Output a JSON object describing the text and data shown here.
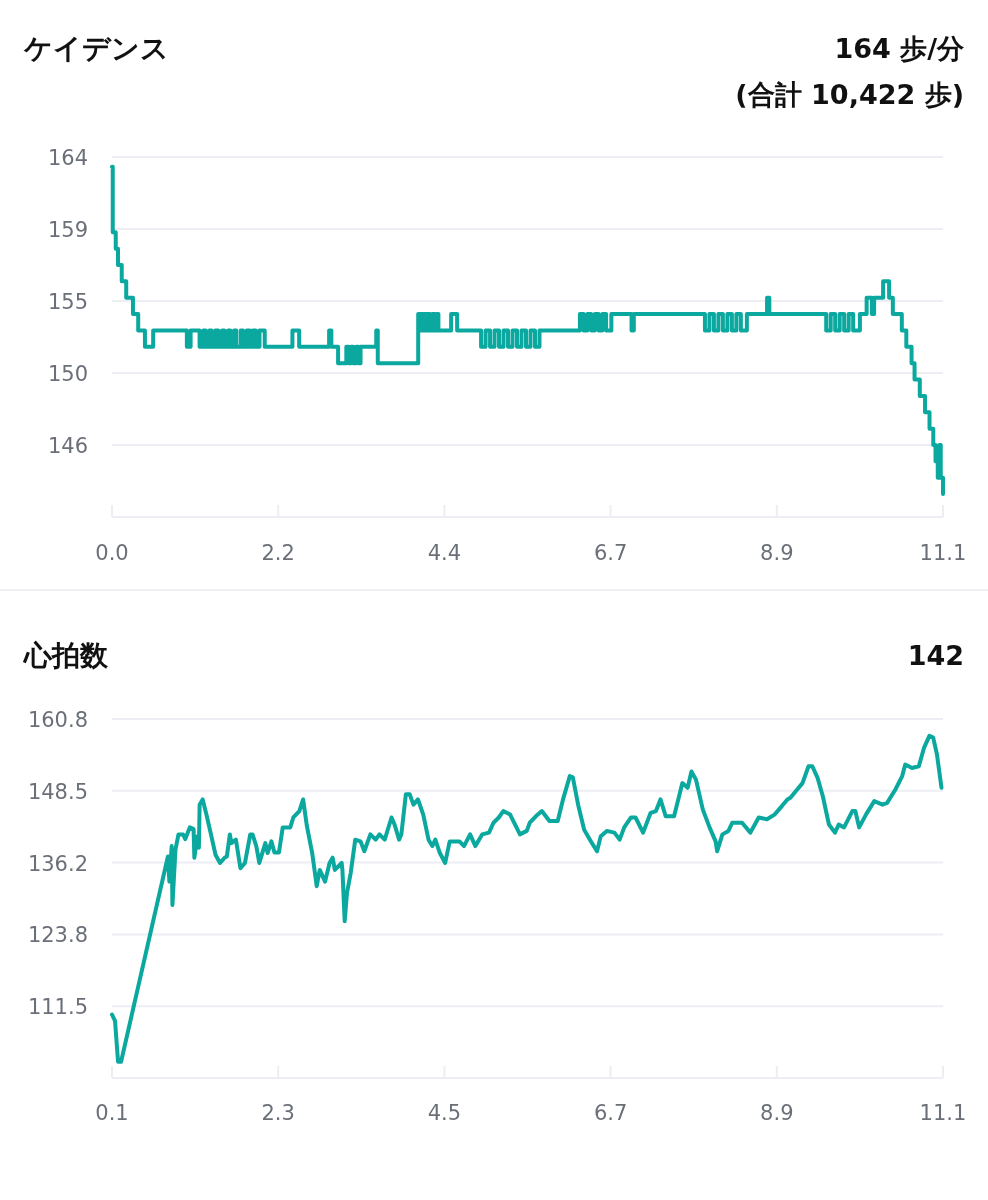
{
  "chart_data": [
    {
      "type": "step",
      "title": "ケイデンス",
      "annotations": [
        "164 歩/分",
        "(合計 10,422 歩)"
      ],
      "color": "#0aa89e",
      "grid": "y",
      "xlim": [
        0,
        11.1
      ],
      "ylim": [
        141.6,
        163.6
      ],
      "xticks": [
        {
          "value": 0,
          "label": "0.0"
        },
        {
          "value": 2.22,
          "label": "2.2"
        },
        {
          "value": 4.44,
          "label": "4.4"
        },
        {
          "value": 6.66,
          "label": "6.7"
        },
        {
          "value": 8.88,
          "label": "8.9"
        },
        {
          "value": 11.1,
          "label": "11.1"
        }
      ],
      "yticks": [
        {
          "value": 146.0,
          "label": "146"
        },
        {
          "value": 150.4,
          "label": "150"
        },
        {
          "value": 154.8,
          "label": "155"
        },
        {
          "value": 159.2,
          "label": "159"
        },
        {
          "value": 163.6,
          "label": "164"
        }
      ],
      "x": [
        0,
        0.01,
        0.05,
        0.08,
        0.13,
        0.19,
        0.28,
        0.35,
        0.44,
        0.55,
        1.0,
        1.05,
        1.17,
        1.22,
        1.25,
        1.3,
        1.33,
        1.38,
        1.42,
        1.47,
        1.5,
        1.55,
        1.58,
        1.63,
        1.66,
        1.72,
        1.75,
        1.8,
        1.84,
        1.88,
        1.92,
        1.97,
        2.04,
        2.41,
        2.5,
        2.9,
        2.93,
        3.02,
        3.13,
        3.16,
        3.19,
        3.22,
        3.26,
        3.29,
        3.32,
        3.53,
        3.55,
        4.09,
        4.13,
        4.15,
        4.19,
        4.21,
        4.25,
        4.28,
        4.32,
        4.34,
        4.36,
        4.53,
        4.61,
        4.93,
        4.99,
        5.05,
        5.11,
        5.17,
        5.23,
        5.29,
        5.35,
        5.41,
        5.47,
        5.53,
        5.59,
        5.65,
        5.71,
        5.78,
        6.25,
        6.3,
        6.35,
        6.4,
        6.45,
        6.5,
        6.55,
        6.6,
        6.67,
        6.94,
        6.97,
        7.92,
        7.98,
        8.04,
        8.1,
        8.16,
        8.22,
        8.28,
        8.34,
        8.4,
        8.48,
        8.75,
        8.78,
        9.54,
        9.6,
        9.66,
        9.72,
        9.78,
        9.84,
        9.9,
        9.99,
        10.08,
        10.15,
        10.18,
        10.3,
        10.38,
        10.43,
        10.55,
        10.61,
        10.68,
        10.72,
        10.79,
        10.86,
        10.92,
        10.97,
        11.0,
        11.03,
        11.05,
        11.07,
        11.1
      ],
      "values": [
        163,
        159,
        158,
        157,
        156,
        155,
        154,
        153,
        152,
        153,
        152,
        153,
        152,
        153,
        152,
        153,
        152,
        153,
        152,
        153,
        152,
        153,
        152,
        153,
        152,
        153,
        152,
        153,
        152,
        153,
        152,
        153,
        152,
        153,
        152,
        153,
        152,
        151,
        152,
        151,
        152,
        151,
        152,
        151,
        152,
        153,
        151,
        154,
        153,
        154,
        153,
        154,
        153,
        154,
        153,
        154,
        153,
        154,
        153,
        152,
        153,
        152,
        153,
        152,
        153,
        152,
        153,
        152,
        153,
        152,
        153,
        152,
        153,
        153,
        154,
        153,
        154,
        153,
        154,
        153,
        154,
        153,
        154,
        153,
        154,
        153,
        154,
        153,
        154,
        153,
        154,
        153,
        154,
        153,
        154,
        155,
        154,
        153,
        154,
        153,
        154,
        153,
        154,
        153,
        154,
        155,
        154,
        155,
        156,
        155,
        154,
        153,
        152,
        151,
        150,
        149,
        148,
        147,
        146,
        145,
        144,
        146,
        144,
        143
      ]
    },
    {
      "type": "line",
      "title": "心拍数",
      "annotations": [
        "142"
      ],
      "color": "#0aa89e",
      "grid": "y",
      "xlim": [
        0.1,
        11.1
      ],
      "ylim": [
        99.2,
        160.8
      ],
      "xticks": [
        0.1,
        2.3,
        4.5,
        6.7,
        8.9,
        11.1
      ],
      "yticks": [
        {
          "value": 111.52,
          "label": "111.5"
        },
        {
          "value": 123.84,
          "label": "123.8"
        },
        {
          "value": 136.16,
          "label": "136.2"
        },
        {
          "value": 148.48,
          "label": "148.5"
        },
        {
          "value": 160.8,
          "label": "160.8"
        }
      ],
      "x": [
        0.1,
        0.14,
        0.18,
        0.22,
        0.84,
        0.86,
        0.89,
        0.9,
        0.94,
        0.98,
        1.04,
        1.07,
        1.13,
        1.18,
        1.19,
        1.23,
        1.25,
        1.26,
        1.3,
        1.35,
        1.41,
        1.47,
        1.53,
        1.59,
        1.62,
        1.66,
        1.68,
        1.74,
        1.8,
        1.86,
        1.93,
        1.96,
        2.01,
        2.05,
        2.13,
        2.16,
        2.21,
        2.25,
        2.31,
        2.36,
        2.46,
        2.5,
        2.58,
        2.63,
        2.68,
        2.75,
        2.81,
        2.85,
        2.92,
        2.98,
        3.02,
        3.05,
        3.14,
        3.15,
        3.18,
        3.21,
        3.26,
        3.32,
        3.39,
        3.44,
        3.52,
        3.59,
        3.64,
        3.71,
        3.8,
        3.84,
        3.9,
        3.93,
        3.99,
        4.04,
        4.09,
        4.15,
        4.22,
        4.29,
        4.34,
        4.38,
        4.44,
        4.51,
        4.57,
        4.7,
        4.76,
        4.84,
        4.91,
        5.0,
        5.09,
        5.15,
        5.22,
        5.28,
        5.37,
        5.5,
        5.59,
        5.63,
        5.71,
        5.79,
        5.89,
        6.0,
        6.07,
        6.16,
        6.2,
        6.27,
        6.35,
        6.44,
        6.52,
        6.57,
        6.65,
        6.75,
        6.82,
        6.88,
        6.97,
        7.03,
        7.13,
        7.23,
        7.3,
        7.36,
        7.43,
        7.54,
        7.65,
        7.72,
        7.77,
        7.83,
        7.92,
        8.01,
        8.09,
        8.11,
        8.18,
        8.26,
        8.31,
        8.44,
        8.55,
        8.66,
        8.77,
        8.87,
        8.97,
        9.04,
        9.08,
        9.17,
        9.24,
        9.32,
        9.37,
        9.44,
        9.51,
        9.59,
        9.67,
        9.72,
        9.79,
        9.9,
        9.94,
        9.99,
        10.08,
        10.19,
        10.3,
        10.36,
        10.47,
        10.56,
        10.6,
        10.69,
        10.78,
        10.85,
        10.92,
        10.97,
        11.02,
        11.08
      ],
      "values": [
        110.1,
        109.0,
        102.0,
        102.0,
        137.2,
        132.9,
        139.0,
        128.9,
        138.4,
        141.0,
        141.0,
        140.2,
        142.2,
        141.9,
        137.0,
        140.7,
        138.7,
        146.1,
        147.0,
        144.4,
        141.0,
        137.5,
        136.1,
        137.0,
        137.2,
        141.0,
        139.5,
        140.1,
        135.2,
        136.1,
        141.0,
        141.0,
        139.0,
        136.1,
        139.5,
        137.8,
        139.8,
        137.9,
        137.9,
        142.2,
        142.2,
        143.9,
        145.0,
        147.0,
        142.4,
        137.8,
        132.1,
        134.9,
        132.9,
        136.1,
        137.0,
        134.9,
        136.1,
        134.9,
        126.1,
        130.9,
        134.4,
        140.1,
        139.8,
        138.1,
        141.0,
        140.1,
        141.0,
        140.1,
        143.9,
        142.7,
        140.1,
        141.0,
        147.9,
        147.9,
        146.1,
        147.0,
        144.4,
        140.1,
        139.0,
        140.1,
        137.8,
        136.1,
        139.8,
        139.8,
        139.0,
        141.0,
        139.0,
        141.0,
        141.3,
        143.0,
        143.9,
        145.0,
        144.4,
        141.0,
        141.6,
        143.0,
        144.1,
        145.0,
        143.3,
        143.3,
        147.0,
        151.0,
        150.8,
        146.1,
        141.8,
        139.8,
        138.1,
        140.7,
        141.6,
        141.3,
        140.1,
        142.2,
        143.9,
        143.9,
        141.3,
        144.7,
        145.0,
        147.0,
        144.1,
        144.1,
        149.8,
        149.0,
        151.8,
        150.4,
        145.3,
        142.2,
        139.8,
        138.1,
        141.0,
        141.6,
        143.0,
        143.0,
        141.3,
        143.9,
        143.6,
        144.4,
        145.9,
        147.0,
        147.3,
        148.7,
        149.8,
        152.7,
        152.7,
        150.7,
        147.5,
        142.7,
        141.3,
        142.7,
        142.2,
        145.0,
        145.0,
        142.2,
        144.4,
        146.7,
        146.1,
        146.4,
        148.7,
        151.0,
        153.0,
        152.4,
        152.7,
        155.9,
        157.9,
        157.6,
        154.7,
        149.0
      ]
    }
  ]
}
